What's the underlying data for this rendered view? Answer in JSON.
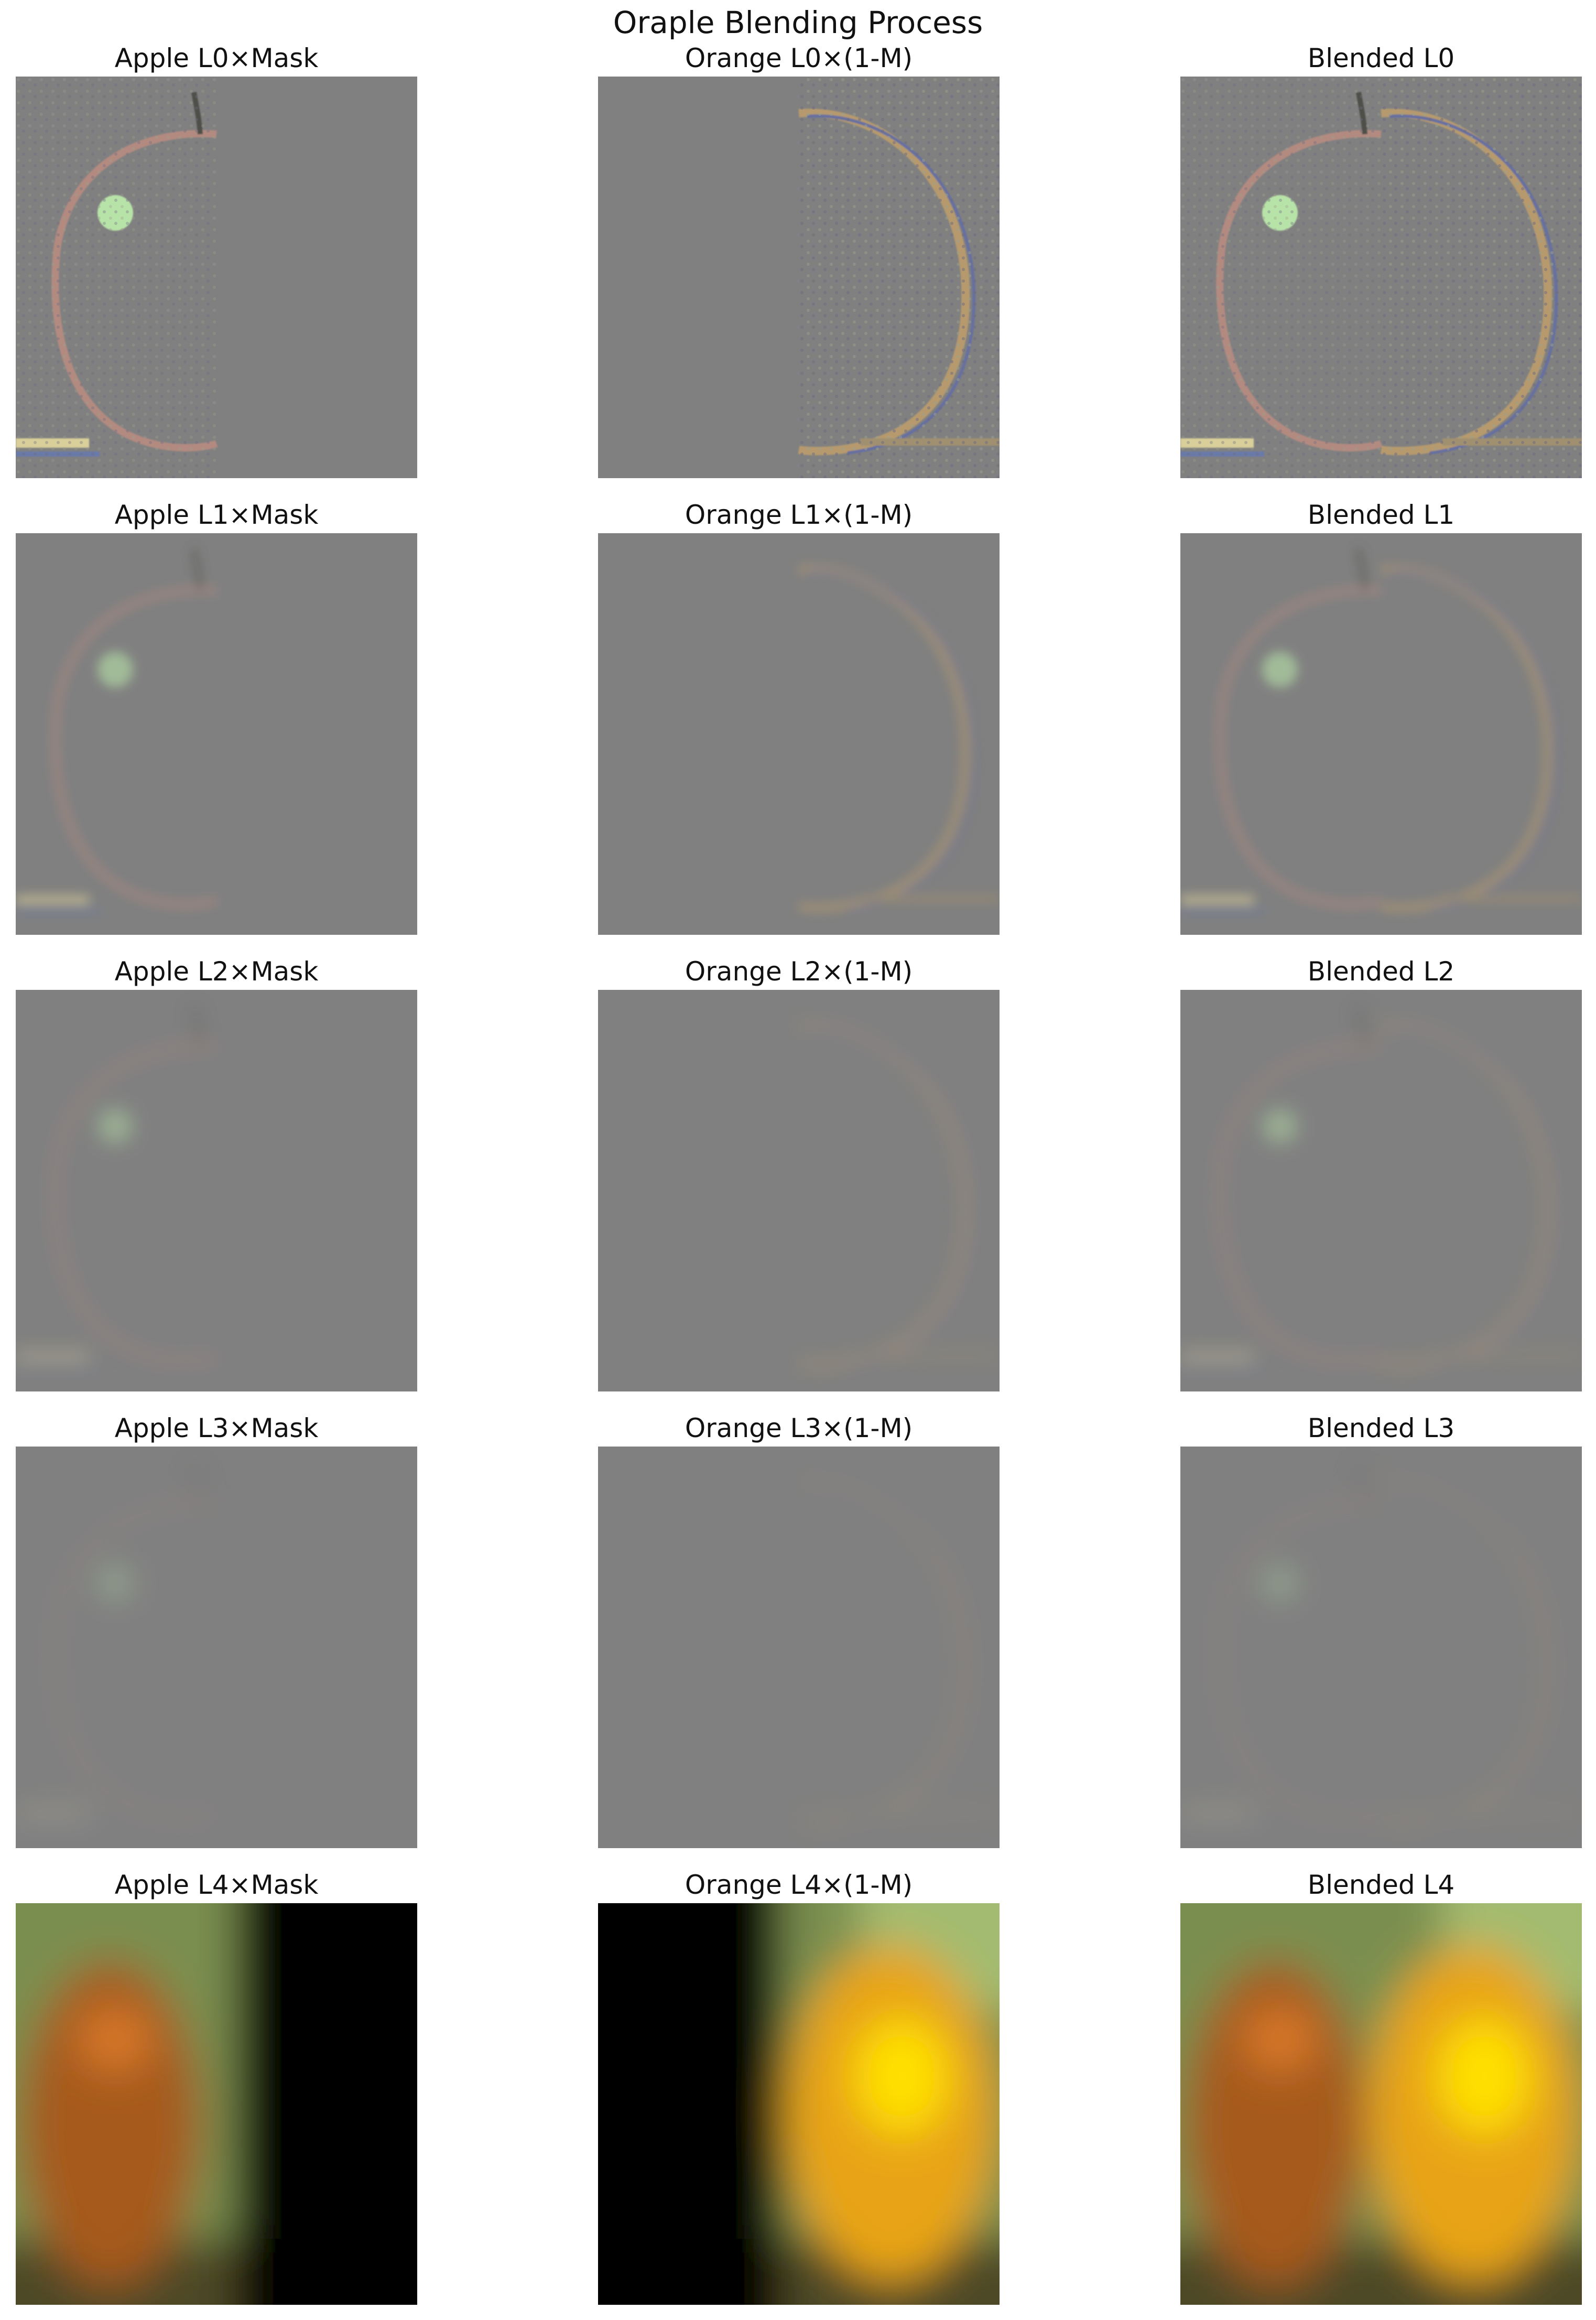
{
  "figure": {
    "title": "Oraple Blending Process"
  },
  "columns": [
    "Apple",
    "Orange",
    "Blended"
  ],
  "rows": [
    {
      "level": "L0",
      "titles": [
        "Apple L0×Mask",
        "Orange L0×(1-M)",
        "Blended L0"
      ],
      "kind": "detail"
    },
    {
      "level": "L1",
      "titles": [
        "Apple L1×Mask",
        "Orange L1×(1-M)",
        "Blended L1"
      ],
      "kind": "laplacian"
    },
    {
      "level": "L2",
      "titles": [
        "Apple L2×Mask",
        "Orange L2×(1-M)",
        "Blended L2"
      ],
      "kind": "laplacian"
    },
    {
      "level": "L3",
      "titles": [
        "Apple L3×Mask",
        "Orange L3×(1-M)",
        "Blended L3"
      ],
      "kind": "laplacian"
    },
    {
      "level": "L4",
      "titles": [
        "Apple L4×Mask",
        "Orange L4×(1-M)",
        "Blended L4"
      ],
      "kind": "lowpass"
    }
  ],
  "colors": {
    "neutral_gray": "#808080",
    "apple_lowpass": "#a65a1c",
    "apple_highlight": "#d9792a",
    "orange_lowpass": "#e8a412",
    "orange_highlight": "#ffe000",
    "background_green": "#7a8f50",
    "mask_black": "#000000"
  }
}
